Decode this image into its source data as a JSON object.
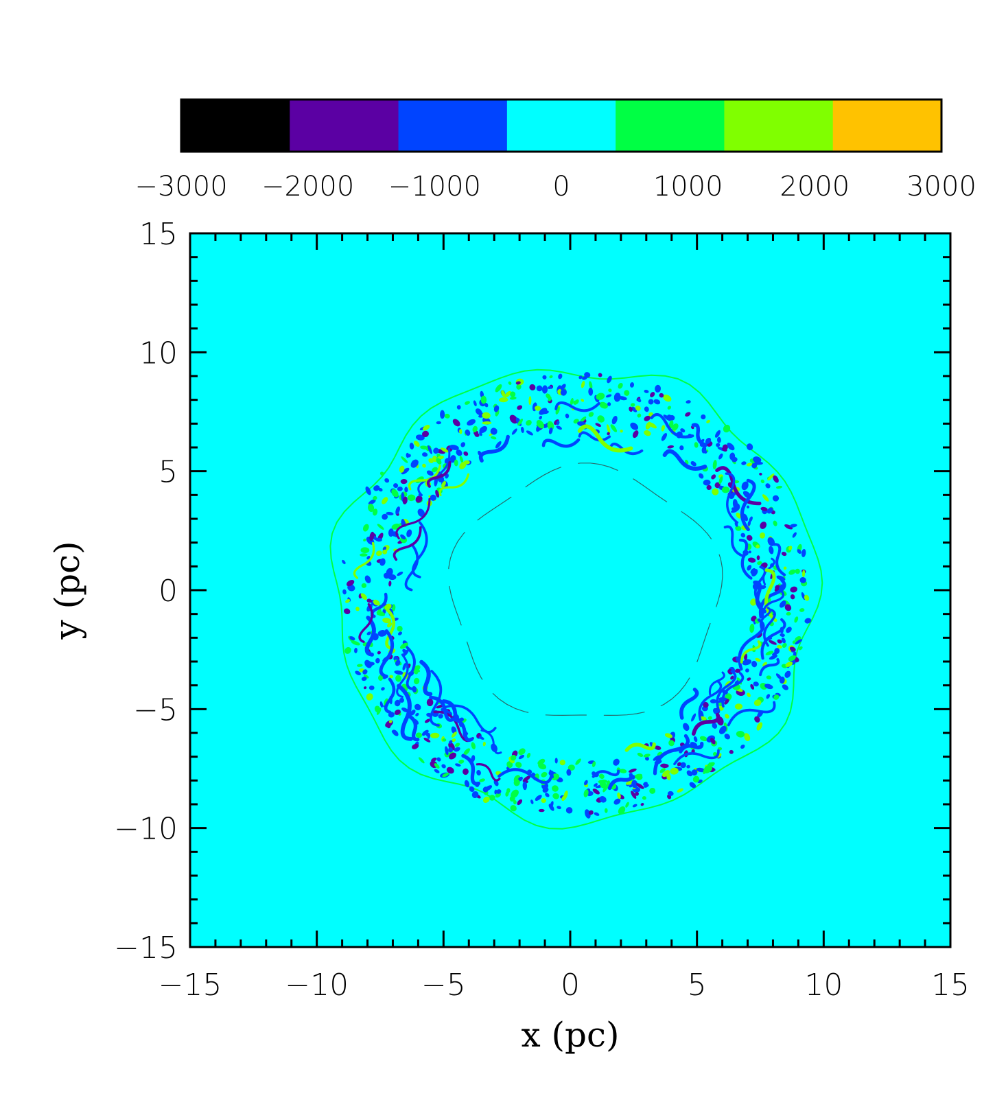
{
  "chart_data": {
    "type": "heatmap",
    "title": "",
    "xlabel": "x (pc)",
    "ylabel": "y (pc)",
    "xlim": [
      -15,
      15
    ],
    "ylim": [
      -15,
      15
    ],
    "x_ticks": [
      -15,
      -10,
      -5,
      0,
      5,
      10,
      15
    ],
    "y_ticks": [
      -15,
      -10,
      -5,
      0,
      5,
      10,
      15
    ],
    "x_tick_labels": [
      "−15",
      "−10",
      "−5",
      "0",
      "5",
      "10",
      "15"
    ],
    "y_tick_labels": [
      "−15",
      "−10",
      "−5",
      "0",
      "5",
      "10",
      "15"
    ],
    "background_value": 0,
    "colorbar": {
      "range": [
        -3000,
        3000
      ],
      "tick_values": [
        -3000,
        -2000,
        -1000,
        0,
        1000,
        2000,
        3000
      ],
      "tick_labels": [
        "−3000",
        "−2000",
        "−1000",
        "0",
        "1000",
        "2000",
        "3000"
      ],
      "levels": [
        {
          "color": "#000000"
        },
        {
          "color": "#5b00a3"
        },
        {
          "color": "#0044ff"
        },
        {
          "color": "#00ffff"
        },
        {
          "color": "#00ff44"
        },
        {
          "color": "#80ff00"
        },
        {
          "color": "#ffc200"
        }
      ]
    },
    "features": {
      "outer_shell_radius_pc": 9.5,
      "inner_shell_radius_pc": 5.3,
      "center_pc": [
        0.2,
        -0.2
      ]
    }
  }
}
